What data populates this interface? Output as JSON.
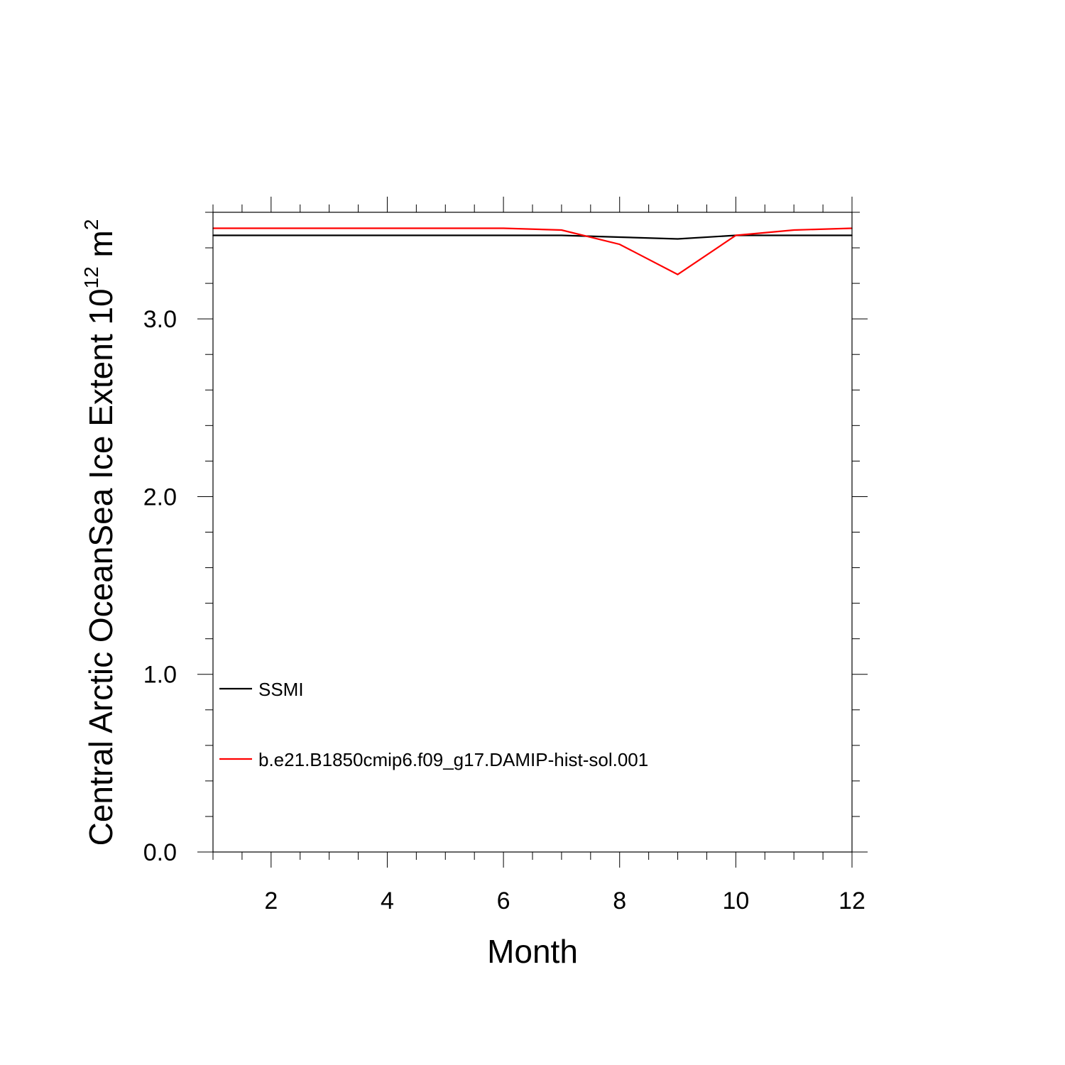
{
  "chart_data": {
    "type": "line",
    "title": "",
    "xlabel": "Month",
    "ylabel_main": "Central Arctic OceanSea Ice Extent 10",
    "ylabel_exponent": "12",
    "ylabel_unit": " m",
    "ylabel_unit_exponent": "2",
    "xlim": [
      1,
      12
    ],
    "ylim": [
      0,
      3.6
    ],
    "x_ticks": [
      2,
      4,
      6,
      8,
      10,
      12
    ],
    "x_tick_labels": [
      "2",
      "4",
      "6",
      "8",
      "10",
      "12"
    ],
    "y_ticks": [
      0,
      1,
      2,
      3
    ],
    "y_tick_labels": [
      "0.0",
      "1.0",
      "2.0",
      "3.0"
    ],
    "x_minor_step": 0.5,
    "y_minor_step": 0.2,
    "grid": false,
    "legend_position": "bottom-left",
    "x": [
      1,
      2,
      3,
      4,
      5,
      6,
      7,
      8,
      9,
      10,
      11,
      12
    ],
    "series": [
      {
        "name": "SSMI",
        "color": "#000000",
        "values": [
          3.47,
          3.47,
          3.47,
          3.47,
          3.47,
          3.47,
          3.47,
          3.46,
          3.45,
          3.47,
          3.47,
          3.47
        ]
      },
      {
        "name": "b.e21.B1850cmip6.f09_g17.DAMIP-hist-sol.001",
        "color": "#ff0000",
        "values": [
          3.51,
          3.51,
          3.51,
          3.51,
          3.51,
          3.51,
          3.5,
          3.42,
          3.25,
          3.47,
          3.5,
          3.51
        ]
      }
    ]
  }
}
